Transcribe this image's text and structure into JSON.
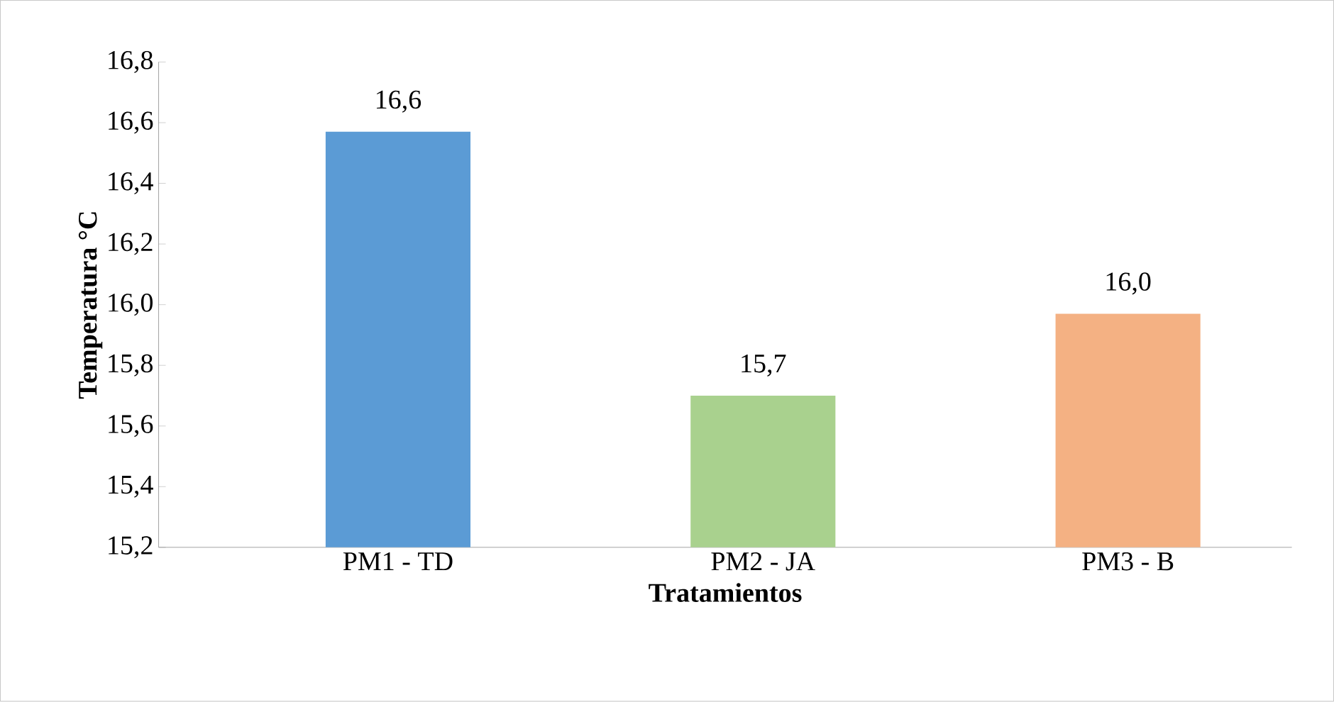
{
  "chart_data": {
    "type": "bar",
    "xlabel": "Tratamientos",
    "ylabel": "Temperatura °C",
    "categories": [
      "PM1 - TD",
      "PM2 - JA",
      "PM3 - B"
    ],
    "values": [
      16.57,
      15.7,
      15.97
    ],
    "colors": [
      "#5b9bd5",
      "#a9d18e",
      "#f4b183"
    ],
    "value_labels": [
      "16,6",
      "15,7",
      "16,0"
    ],
    "ylim": [
      15.2,
      16.8
    ],
    "yticks": [
      {
        "value": 15.2,
        "label": "15,2"
      },
      {
        "value": 15.4,
        "label": "15,4"
      },
      {
        "value": 15.6,
        "label": "15,6"
      },
      {
        "value": 15.8,
        "label": "15,8"
      },
      {
        "value": 16.0,
        "label": "16,0"
      },
      {
        "value": 16.2,
        "label": "16,2"
      },
      {
        "value": 16.4,
        "label": "16,4"
      },
      {
        "value": 16.6,
        "label": "16,6"
      },
      {
        "value": 16.8,
        "label": "16,8"
      }
    ],
    "grid": false
  }
}
